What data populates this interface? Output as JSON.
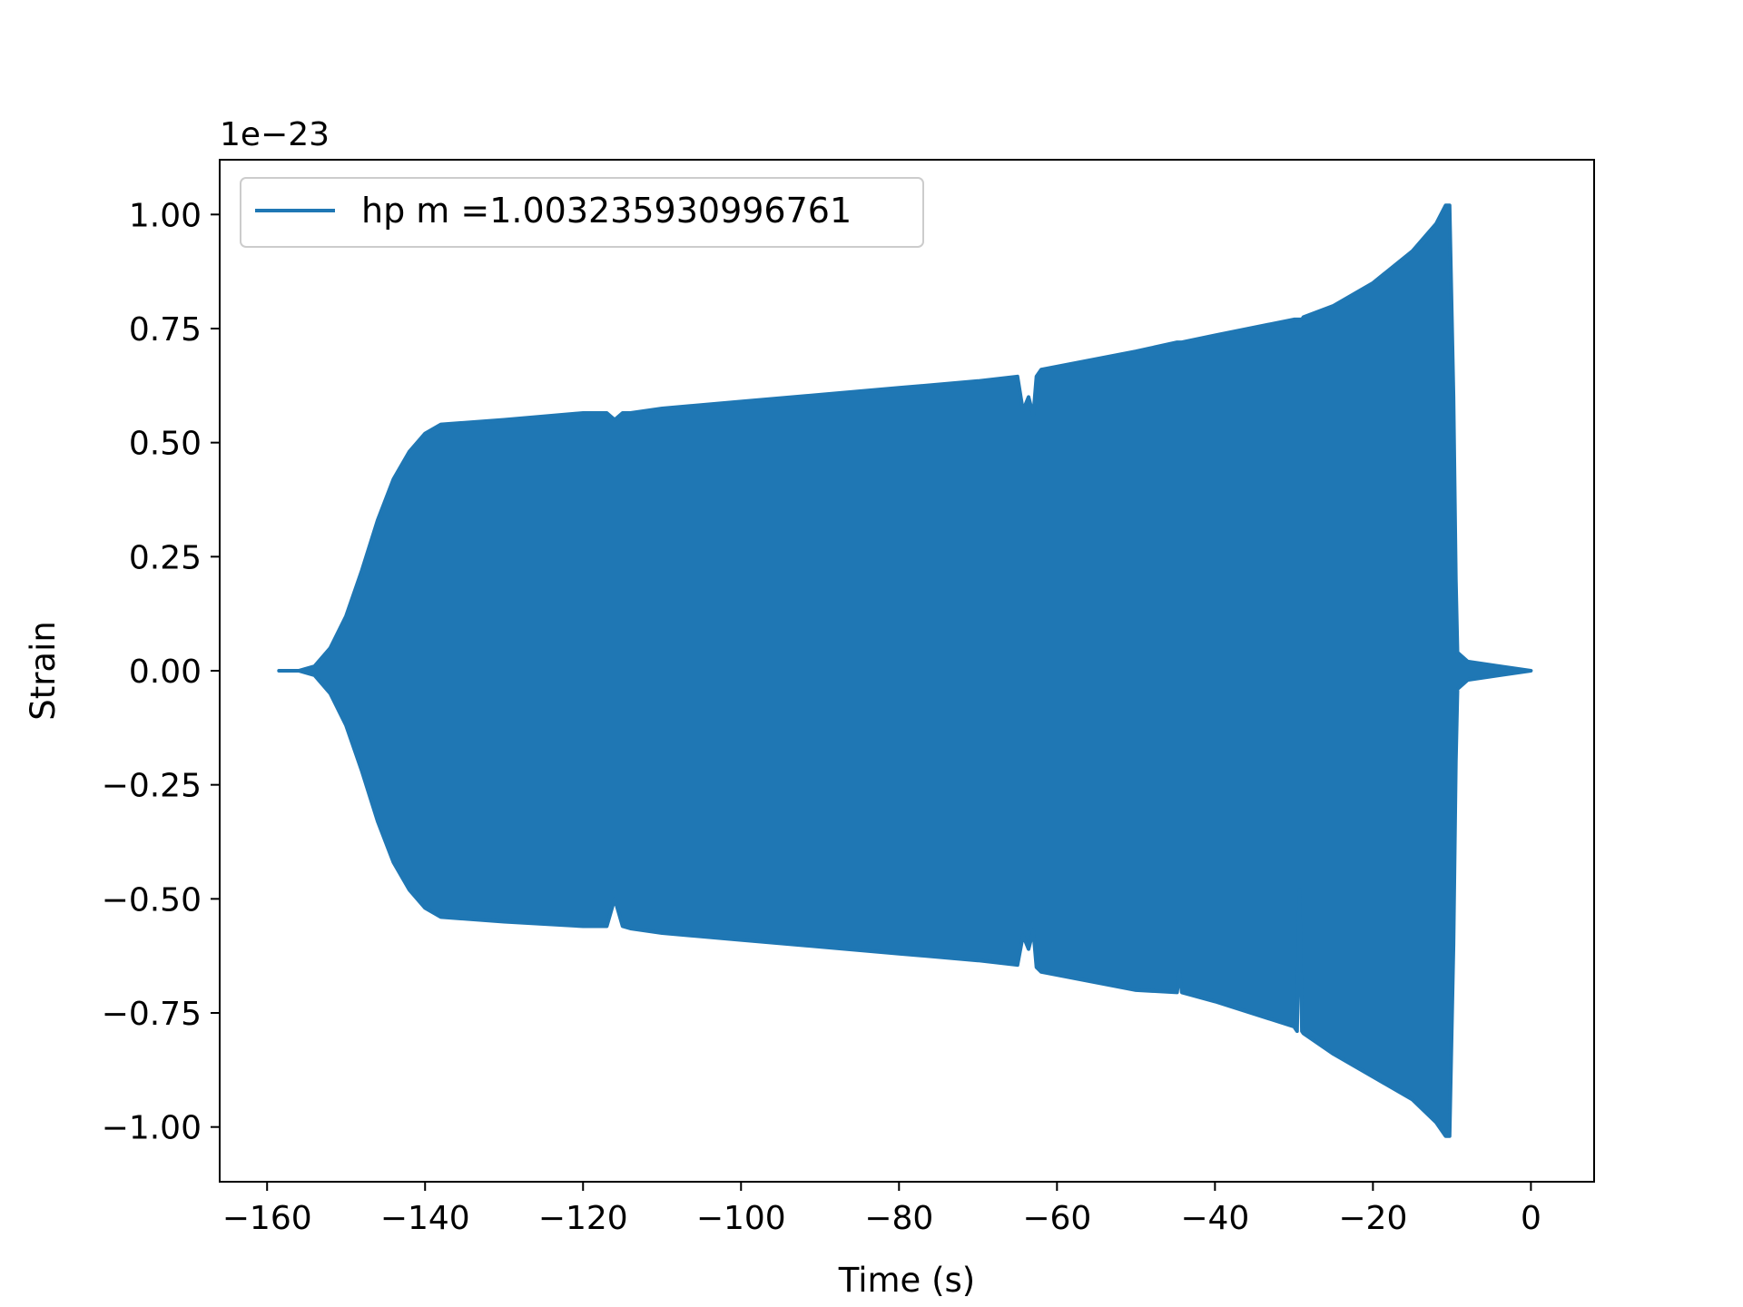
{
  "chart_data": {
    "type": "area",
    "xlabel": "Time (s)",
    "ylabel": "Strain",
    "y_scale_label": "1e−23",
    "xlim": [
      -166,
      8
    ],
    "ylim": [
      -1.12,
      1.12
    ],
    "x_ticks": [
      -160,
      -140,
      -120,
      -100,
      -80,
      -60,
      -40,
      -20,
      0
    ],
    "x_tick_labels": [
      "−160",
      "−140",
      "−120",
      "−100",
      "−80",
      "−60",
      "−40",
      "−20",
      "0"
    ],
    "y_ticks": [
      1.0,
      0.75,
      0.5,
      0.25,
      0.0,
      -0.25,
      -0.5,
      -0.75,
      -1.0
    ],
    "y_tick_labels": [
      "1.00",
      "0.75",
      "0.50",
      "0.25",
      "0.00",
      "−0.25",
      "−0.50",
      "−0.75",
      "−1.00"
    ],
    "legend": {
      "position": "top-left"
    },
    "grid": false,
    "series": [
      {
        "name": "hp m =1.003235930996761",
        "color": "#1f77b4",
        "envelope": {
          "x": [
            -158.5,
            -156,
            -154,
            -152,
            -150,
            -148,
            -146,
            -144,
            -142,
            -140,
            -138,
            -130,
            -120,
            -117,
            -116,
            -115,
            -114,
            -110,
            -100,
            -90,
            -80,
            -70,
            -65,
            -64.3,
            -63.6,
            -63,
            -62.6,
            -62,
            -50,
            -44.8,
            -44.5,
            -44.2,
            -40,
            -30,
            -29.6,
            -29.3,
            -29.0,
            -28.8,
            -25,
            -20,
            -15,
            -12,
            -10.8,
            -10.3,
            -9.8,
            -9.5,
            -9.3,
            -8,
            -4,
            0
          ],
          "upper": [
            0.0,
            0.0,
            0.01,
            0.05,
            0.12,
            0.22,
            0.33,
            0.42,
            0.48,
            0.52,
            0.54,
            0.55,
            0.565,
            0.565,
            0.55,
            0.565,
            0.565,
            0.575,
            0.59,
            0.605,
            0.62,
            0.635,
            0.645,
            0.57,
            0.6,
            0.56,
            0.645,
            0.66,
            0.7,
            0.72,
            0.72,
            0.72,
            0.735,
            0.77,
            0.77,
            0.77,
            0.77,
            0.775,
            0.8,
            0.85,
            0.92,
            0.98,
            1.02,
            1.02,
            0.6,
            0.2,
            0.04,
            0.02,
            0.01,
            0.0
          ],
          "lower": [
            0.0,
            0.0,
            -0.01,
            -0.05,
            -0.12,
            -0.22,
            -0.33,
            -0.42,
            -0.48,
            -0.52,
            -0.54,
            -0.55,
            -0.56,
            -0.56,
            -0.5,
            -0.56,
            -0.565,
            -0.575,
            -0.59,
            -0.605,
            -0.62,
            -0.635,
            -0.645,
            -0.58,
            -0.61,
            -0.57,
            -0.65,
            -0.66,
            -0.7,
            -0.705,
            -0.66,
            -0.705,
            -0.725,
            -0.78,
            -0.79,
            -0.48,
            -0.79,
            -0.795,
            -0.84,
            -0.89,
            -0.94,
            -0.99,
            -1.02,
            -1.02,
            -0.6,
            -0.2,
            -0.04,
            -0.02,
            -0.01,
            0.0
          ]
        }
      }
    ]
  }
}
